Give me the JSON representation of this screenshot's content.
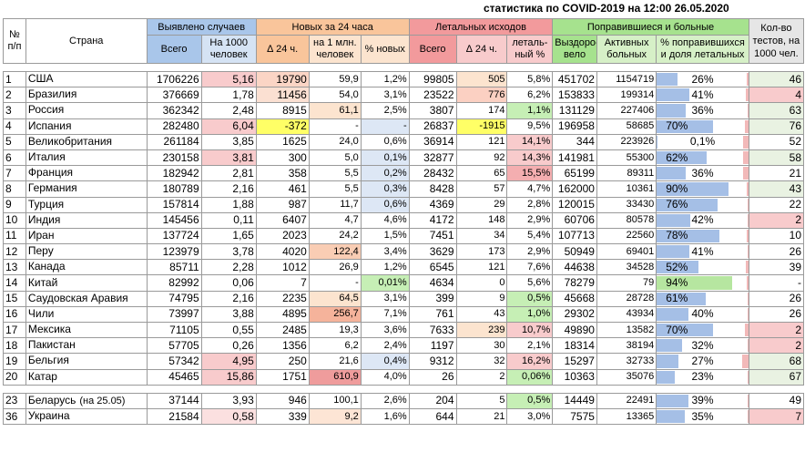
{
  "title": "статистика по COVID-2019 на 12:00 26.05.2020",
  "headers": {
    "num": "№ п/п",
    "country": "Страна",
    "detected": "Выявлено случаев",
    "new24": "Новых за 24 часа",
    "fatal": "Летальных исходов",
    "recovered": "Поправившиеся и больные",
    "tests": "Кол-во тестов, на 1000 чел.",
    "sub": {
      "total": "Всего",
      "per1000": "На 1000 человек",
      "delta24": "∆ 24 ч.",
      "per1m": "на 1 млн. человек",
      "pctnew": "% новых",
      "ftotal": "Всего",
      "fdelta": "∆ 24 ч.",
      "fpct": "леталь-ный %",
      "recov": "Выздоро-вело",
      "active": "Активных больных",
      "pctrec": "% поправившихся и доля летальных"
    }
  },
  "rows": [
    {
      "n": "1",
      "country": "США",
      "note": "",
      "total": "1706226",
      "per1000": "5,16",
      "d24": "19790",
      "per1m": "59,9",
      "pctnew": "1,2%",
      "ftotal": "99805",
      "fd24": "505",
      "fpct": "5,8%",
      "rec": "451702",
      "active": "1154719",
      "pctrec": "26%",
      "pr": 0.26,
      "fr": 0.058,
      "tests": "46"
    },
    {
      "n": "2",
      "country": "Бразилия",
      "note": "",
      "total": "376669",
      "per1000": "1,78",
      "d24": "11456",
      "per1m": "54,0",
      "pctnew": "3,1%",
      "ftotal": "23522",
      "fd24": "776",
      "fpct": "6,2%",
      "rec": "153833",
      "active": "199314",
      "pctrec": "41%",
      "pr": 0.41,
      "fr": 0.062,
      "tests": "4"
    },
    {
      "n": "3",
      "country": "Россия",
      "note": "",
      "total": "362342",
      "per1000": "2,48",
      "d24": "8915",
      "per1m": "61,1",
      "pctnew": "2,5%",
      "ftotal": "3807",
      "fd24": "174",
      "fpct": "1,1%",
      "rec": "131129",
      "active": "227406",
      "pctrec": "36%",
      "pr": 0.36,
      "fr": 0.011,
      "tests": "63"
    },
    {
      "n": "4",
      "country": "Испания",
      "note": "",
      "total": "282480",
      "per1000": "6,04",
      "d24": "-372",
      "per1m": "-",
      "pctnew": "-",
      "ftotal": "26837",
      "fd24": "-1915",
      "fpct": "9,5%",
      "rec": "196958",
      "active": "58685",
      "pctrec": "70%",
      "pr": 0.7,
      "fr": 0.095,
      "tests": "76"
    },
    {
      "n": "5",
      "country": "Великобритания",
      "note": "",
      "total": "261184",
      "per1000": "3,85",
      "d24": "1625",
      "per1m": "24,0",
      "pctnew": "0,6%",
      "ftotal": "36914",
      "fd24": "121",
      "fpct": "14,1%",
      "rec": "344",
      "active": "223926",
      "pctrec": "0,1%",
      "pr": 0.001,
      "fr": 0.141,
      "tests": "52"
    },
    {
      "n": "6",
      "country": "Италия",
      "note": "",
      "total": "230158",
      "per1000": "3,81",
      "d24": "300",
      "per1m": "5,0",
      "pctnew": "0,1%",
      "ftotal": "32877",
      "fd24": "92",
      "fpct": "14,3%",
      "rec": "141981",
      "active": "55300",
      "pctrec": "62%",
      "pr": 0.62,
      "fr": 0.143,
      "tests": "58"
    },
    {
      "n": "7",
      "country": "Франция",
      "note": "",
      "total": "182942",
      "per1000": "2,81",
      "d24": "358",
      "per1m": "5,5",
      "pctnew": "0,2%",
      "ftotal": "28432",
      "fd24": "65",
      "fpct": "15,5%",
      "rec": "65199",
      "active": "89311",
      "pctrec": "36%",
      "pr": 0.36,
      "fr": 0.155,
      "tests": "21"
    },
    {
      "n": "8",
      "country": "Германия",
      "note": "",
      "total": "180789",
      "per1000": "2,16",
      "d24": "461",
      "per1m": "5,5",
      "pctnew": "0,3%",
      "ftotal": "8428",
      "fd24": "57",
      "fpct": "4,7%",
      "rec": "162000",
      "active": "10361",
      "pctrec": "90%",
      "pr": 0.9,
      "fr": 0.047,
      "tests": "43"
    },
    {
      "n": "9",
      "country": "Турция",
      "note": "",
      "total": "157814",
      "per1000": "1,88",
      "d24": "987",
      "per1m": "11,7",
      "pctnew": "0,6%",
      "ftotal": "4369",
      "fd24": "29",
      "fpct": "2,8%",
      "rec": "120015",
      "active": "33430",
      "pctrec": "76%",
      "pr": 0.76,
      "fr": 0.028,
      "tests": "22"
    },
    {
      "n": "10",
      "country": "Индия",
      "note": "",
      "total": "145456",
      "per1000": "0,11",
      "d24": "6407",
      "per1m": "4,7",
      "pctnew": "4,6%",
      "ftotal": "4172",
      "fd24": "148",
      "fpct": "2,9%",
      "rec": "60706",
      "active": "80578",
      "pctrec": "42%",
      "pr": 0.42,
      "fr": 0.029,
      "tests": "2"
    },
    {
      "n": "11",
      "country": "Иран",
      "note": "",
      "total": "137724",
      "per1000": "1,65",
      "d24": "2023",
      "per1m": "24,2",
      "pctnew": "1,5%",
      "ftotal": "7451",
      "fd24": "34",
      "fpct": "5,4%",
      "rec": "107713",
      "active": "22560",
      "pctrec": "78%",
      "pr": 0.78,
      "fr": 0.054,
      "tests": "10"
    },
    {
      "n": "12",
      "country": "Перу",
      "note": "",
      "total": "123979",
      "per1000": "3,78",
      "d24": "4020",
      "per1m": "122,4",
      "pctnew": "3,4%",
      "ftotal": "3629",
      "fd24": "173",
      "fpct": "2,9%",
      "rec": "50949",
      "active": "69401",
      "pctrec": "41%",
      "pr": 0.41,
      "fr": 0.029,
      "tests": "26"
    },
    {
      "n": "13",
      "country": "Канада",
      "note": "",
      "total": "85711",
      "per1000": "2,28",
      "d24": "1012",
      "per1m": "26,9",
      "pctnew": "1,2%",
      "ftotal": "6545",
      "fd24": "121",
      "fpct": "7,6%",
      "rec": "44638",
      "active": "34528",
      "pctrec": "52%",
      "pr": 0.52,
      "fr": 0.076,
      "tests": "39"
    },
    {
      "n": "14",
      "country": "Китай",
      "note": "",
      "total": "82992",
      "per1000": "0,06",
      "d24": "7",
      "per1m": "-",
      "pctnew": "0,01%",
      "ftotal": "4634",
      "fd24": "0",
      "fpct": "5,6%",
      "rec": "78279",
      "active": "79",
      "pctrec": "94%",
      "pr": 0.94,
      "fr": 0.056,
      "tests": "-"
    },
    {
      "n": "15",
      "country": "Саудовская Аравия",
      "note": "",
      "total": "74795",
      "per1000": "2,16",
      "d24": "2235",
      "per1m": "64,5",
      "pctnew": "3,1%",
      "ftotal": "399",
      "fd24": "9",
      "fpct": "0,5%",
      "rec": "45668",
      "active": "28728",
      "pctrec": "61%",
      "pr": 0.61,
      "fr": 0.005,
      "tests": "26"
    },
    {
      "n": "16",
      "country": "Чили",
      "note": "",
      "total": "73997",
      "per1000": "3,88",
      "d24": "4895",
      "per1m": "256,7",
      "pctnew": "7,1%",
      "ftotal": "761",
      "fd24": "43",
      "fpct": "1,0%",
      "rec": "29302",
      "active": "43934",
      "pctrec": "40%",
      "pr": 0.4,
      "fr": 0.01,
      "tests": "26"
    },
    {
      "n": "17",
      "country": "Мексика",
      "note": "",
      "total": "71105",
      "per1000": "0,55",
      "d24": "2485",
      "per1m": "19,3",
      "pctnew": "3,6%",
      "ftotal": "7633",
      "fd24": "239",
      "fpct": "10,7%",
      "rec": "49890",
      "active": "13582",
      "pctrec": "70%",
      "pr": 0.7,
      "fr": 0.107,
      "tests": "2"
    },
    {
      "n": "18",
      "country": "Пакистан",
      "note": "",
      "total": "57705",
      "per1000": "0,26",
      "d24": "1356",
      "per1m": "6,2",
      "pctnew": "2,4%",
      "ftotal": "1197",
      "fd24": "30",
      "fpct": "2,1%",
      "rec": "18314",
      "active": "38194",
      "pctrec": "32%",
      "pr": 0.32,
      "fr": 0.021,
      "tests": "2"
    },
    {
      "n": "19",
      "country": "Бельгия",
      "note": "",
      "total": "57342",
      "per1000": "4,95",
      "d24": "250",
      "per1m": "21,6",
      "pctnew": "0,4%",
      "ftotal": "9312",
      "fd24": "32",
      "fpct": "16,2%",
      "rec": "15297",
      "active": "32733",
      "pctrec": "27%",
      "pr": 0.27,
      "fr": 0.162,
      "tests": "68"
    },
    {
      "n": "20",
      "country": "Катар",
      "note": "",
      "total": "45465",
      "per1000": "15,86",
      "d24": "1751",
      "per1m": "610,9",
      "pctnew": "4,0%",
      "ftotal": "26",
      "fd24": "2",
      "fpct": "0,06%",
      "rec": "10363",
      "active": "35076",
      "pctrec": "23%",
      "pr": 0.23,
      "fr": 0.0006,
      "tests": "67"
    }
  ],
  "extra_rows": [
    {
      "n": "23",
      "country": "Беларусь",
      "note": "(на 25.05)",
      "total": "37144",
      "per1000": "3,93",
      "d24": "946",
      "per1m": "100,1",
      "pctnew": "2,6%",
      "ftotal": "204",
      "fd24": "5",
      "fpct": "0,5%",
      "rec": "14449",
      "active": "22491",
      "pctrec": "39%",
      "pr": 0.39,
      "fr": 0.005,
      "tests": "49"
    },
    {
      "n": "36",
      "country": "Украина",
      "note": "",
      "total": "21584",
      "per1000": "0,58",
      "d24": "339",
      "per1m": "9,2",
      "pctnew": "1,6%",
      "ftotal": "644",
      "fd24": "21",
      "fpct": "3,0%",
      "rec": "7575",
      "active": "13365",
      "pctrec": "35%",
      "pr": 0.35,
      "fr": 0.03,
      "tests": "7"
    }
  ],
  "colors": {
    "detected_header": "#a9c6ea",
    "new_header": "#f9c59b",
    "fatal_header": "#f29a9c",
    "recovered_header": "#a6e28e",
    "bar_blue": "#a5bfe6",
    "bar_red": "#f2b9b9",
    "highlight_yellow": "#ffff66"
  }
}
